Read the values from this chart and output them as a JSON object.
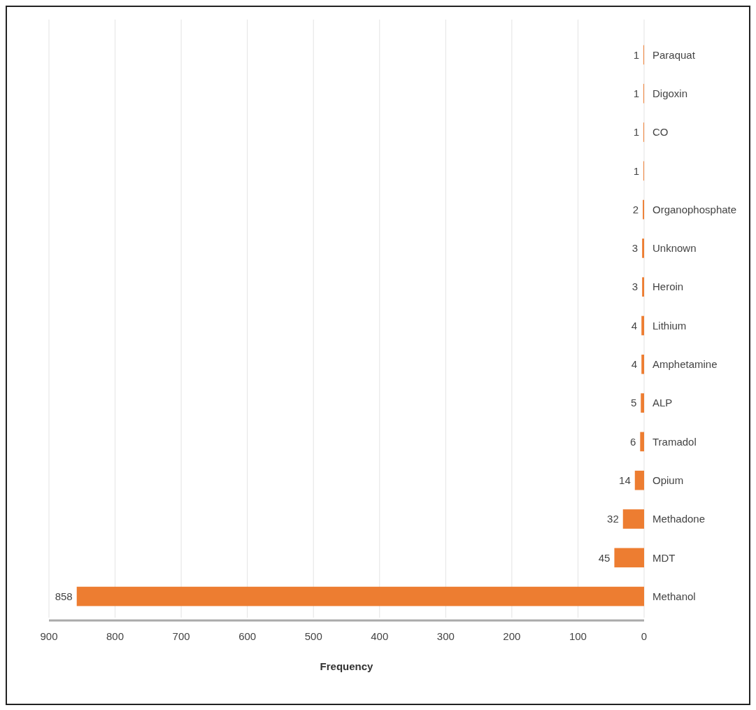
{
  "chart_data": {
    "type": "bar",
    "orientation": "horizontal",
    "xlabel": "Frequency",
    "categories": [
      "Paraquat",
      "Digoxin",
      "CO",
      null,
      "Organophosphate",
      "Unknown",
      "Heroin",
      "Lithium",
      "Amphetamine",
      "ALP",
      "Tramadol",
      "Opium",
      "Methadone",
      "MDT",
      "Methanol"
    ],
    "values": [
      1,
      1,
      1,
      1,
      2,
      3,
      3,
      4,
      4,
      5,
      6,
      14,
      32,
      45,
      858
    ],
    "color": "#ed7d31",
    "xlim": [
      900,
      0
    ],
    "xticks": [
      900,
      800,
      700,
      600,
      500,
      400,
      300,
      200,
      100,
      0
    ],
    "grid": "x",
    "data_labels": true
  }
}
